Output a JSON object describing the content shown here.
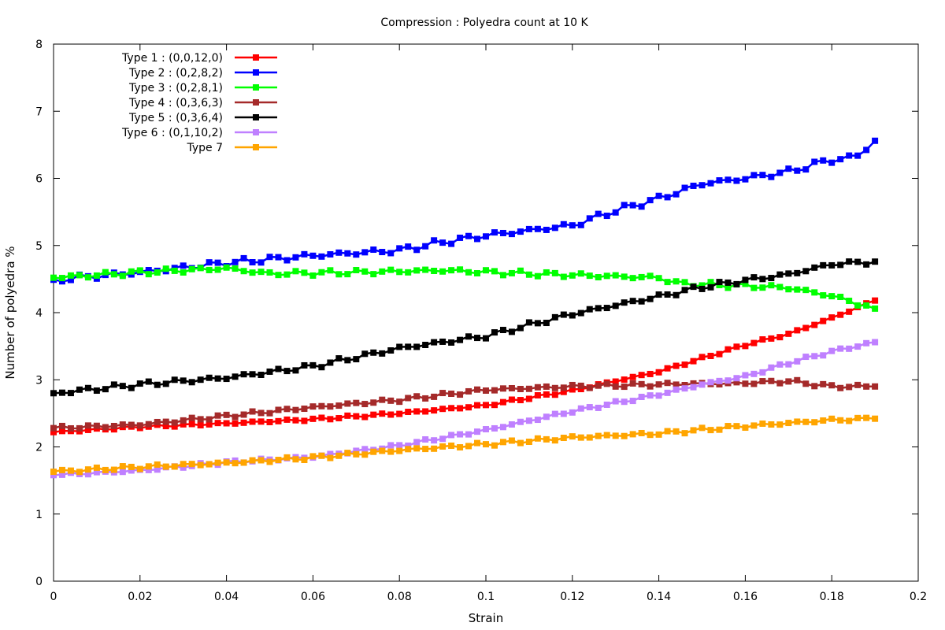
{
  "chart_data": {
    "type": "line",
    "title": "Compression : Polyedra count at 10 K",
    "xlabel": "Strain",
    "ylabel": "Number of polyedra %",
    "xlim": [
      0,
      0.2
    ],
    "ylim": [
      0,
      8
    ],
    "xticks": [
      0,
      0.02,
      0.04,
      0.06,
      0.08,
      0.1,
      0.12,
      0.14,
      0.16,
      0.18,
      0.2
    ],
    "xtick_labels": [
      "0",
      "0.02",
      "0.04",
      "0.06",
      "0.08",
      "0.1",
      "0.12",
      "0.14",
      "0.16",
      "0.18",
      "0.2"
    ],
    "yticks": [
      0,
      1,
      2,
      3,
      4,
      5,
      6,
      7,
      8
    ],
    "ytick_labels": [
      "0",
      "1",
      "2",
      "3",
      "4",
      "5",
      "6",
      "7",
      "8"
    ],
    "grid": false,
    "legend_position": "top-left",
    "x_start": 0,
    "x_step": 0.002,
    "series": [
      {
        "name": "Type 1 : (0,0,12,0)",
        "color": "#ff0000",
        "anchors": [
          [
            0,
            2.22
          ],
          [
            0.02,
            2.3
          ],
          [
            0.04,
            2.35
          ],
          [
            0.06,
            2.41
          ],
          [
            0.08,
            2.5
          ],
          [
            0.1,
            2.62
          ],
          [
            0.12,
            2.84
          ],
          [
            0.14,
            3.12
          ],
          [
            0.16,
            3.52
          ],
          [
            0.17,
            3.68
          ],
          [
            0.18,
            3.92
          ],
          [
            0.19,
            4.18
          ]
        ],
        "wiggle": 0.02
      },
      {
        "name": "Type 2 : (0,2,8,2)",
        "color": "#0000ff",
        "anchors": [
          [
            0,
            4.49
          ],
          [
            0.02,
            4.6
          ],
          [
            0.04,
            4.74
          ],
          [
            0.06,
            4.85
          ],
          [
            0.08,
            4.93
          ],
          [
            0.09,
            5.05
          ],
          [
            0.1,
            5.15
          ],
          [
            0.12,
            5.3
          ],
          [
            0.13,
            5.52
          ],
          [
            0.14,
            5.7
          ],
          [
            0.15,
            5.92
          ],
          [
            0.16,
            6.0
          ],
          [
            0.17,
            6.1
          ],
          [
            0.18,
            6.28
          ],
          [
            0.185,
            6.3
          ],
          [
            0.19,
            6.56
          ]
        ],
        "wiggle": 0.05
      },
      {
        "name": "Type 3 : (0,2,8,1)",
        "color": "#00ff00",
        "anchors": [
          [
            0,
            4.52
          ],
          [
            0.02,
            4.6
          ],
          [
            0.04,
            4.66
          ],
          [
            0.05,
            4.58
          ],
          [
            0.07,
            4.6
          ],
          [
            0.09,
            4.63
          ],
          [
            0.11,
            4.58
          ],
          [
            0.13,
            4.54
          ],
          [
            0.14,
            4.52
          ],
          [
            0.145,
            4.43
          ],
          [
            0.16,
            4.4
          ],
          [
            0.17,
            4.37
          ],
          [
            0.18,
            4.25
          ],
          [
            0.19,
            4.06
          ]
        ],
        "wiggle": 0.04
      },
      {
        "name": "Type 4 : (0,3,6,3)",
        "color": "#a52a2a",
        "anchors": [
          [
            0,
            2.28
          ],
          [
            0.02,
            2.33
          ],
          [
            0.04,
            2.46
          ],
          [
            0.06,
            2.59
          ],
          [
            0.08,
            2.7
          ],
          [
            0.1,
            2.85
          ],
          [
            0.12,
            2.9
          ],
          [
            0.14,
            2.93
          ],
          [
            0.16,
            2.95
          ],
          [
            0.17,
            2.98
          ],
          [
            0.18,
            2.9
          ],
          [
            0.19,
            2.9
          ]
        ],
        "wiggle": 0.03
      },
      {
        "name": "Type 5 : (0,3,6,4)",
        "color": "#000000",
        "anchors": [
          [
            0,
            2.8
          ],
          [
            0.02,
            2.93
          ],
          [
            0.04,
            3.03
          ],
          [
            0.06,
            3.2
          ],
          [
            0.08,
            3.47
          ],
          [
            0.1,
            3.65
          ],
          [
            0.12,
            3.98
          ],
          [
            0.14,
            4.24
          ],
          [
            0.15,
            4.38
          ],
          [
            0.16,
            4.48
          ],
          [
            0.17,
            4.57
          ],
          [
            0.18,
            4.72
          ],
          [
            0.19,
            4.76
          ]
        ],
        "wiggle": 0.04
      },
      {
        "name": "Type 6 : (0,1,10,2)",
        "color": "#bf80ff",
        "anchors": [
          [
            0,
            1.58
          ],
          [
            0.02,
            1.65
          ],
          [
            0.04,
            1.77
          ],
          [
            0.06,
            1.85
          ],
          [
            0.08,
            2.02
          ],
          [
            0.1,
            2.25
          ],
          [
            0.12,
            2.53
          ],
          [
            0.14,
            2.78
          ],
          [
            0.15,
            2.93
          ],
          [
            0.16,
            3.05
          ],
          [
            0.17,
            3.25
          ],
          [
            0.18,
            3.42
          ],
          [
            0.19,
            3.56
          ]
        ],
        "wiggle": 0.025
      },
      {
        "name": "Type 7",
        "color": "#ffa500",
        "anchors": [
          [
            0,
            1.63
          ],
          [
            0.02,
            1.7
          ],
          [
            0.04,
            1.76
          ],
          [
            0.06,
            1.84
          ],
          [
            0.08,
            1.95
          ],
          [
            0.1,
            2.04
          ],
          [
            0.12,
            2.14
          ],
          [
            0.14,
            2.2
          ],
          [
            0.16,
            2.31
          ],
          [
            0.18,
            2.4
          ],
          [
            0.19,
            2.42
          ]
        ],
        "wiggle": 0.03
      }
    ]
  }
}
